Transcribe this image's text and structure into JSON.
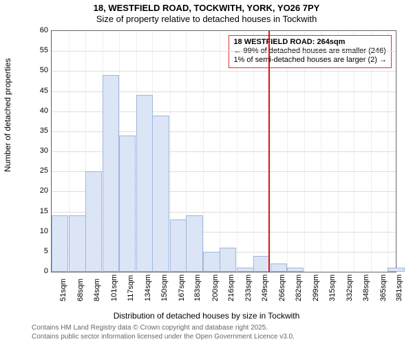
{
  "title": "18, WESTFIELD ROAD, TOCKWITH, YORK, YO26 7PY",
  "subtitle": "Size of property relative to detached houses in Tockwith",
  "yaxis_label": "Number of detached properties",
  "xaxis_label": "Distribution of detached houses by size in Tockwith",
  "credit1": "Contains HM Land Registry data © Crown copyright and database right 2025.",
  "credit2": "Contains public sector information licensed under the Open Government Licence v3.0.",
  "annot": {
    "line1": "18 WESTFIELD ROAD: 264sqm",
    "line2": "← 99% of detached houses are smaller (246)",
    "line3": "1% of semi-detached houses are larger (2) →"
  },
  "chart": {
    "type": "histogram",
    "background_color": "#ffffff",
    "grid_color": "#dddddd",
    "bar_fill": "#dbe5f5",
    "bar_border": "#9fb6dc",
    "marker_color": "#dd1111",
    "annot_border": "#dd3333",
    "ylim": [
      0,
      60
    ],
    "ytick_step": 5,
    "xmin": 51,
    "xmax": 389,
    "xtick_step": 16.5,
    "marker_x": 264,
    "bars": [
      {
        "x": 51,
        "count": 14
      },
      {
        "x": 68,
        "count": 14
      },
      {
        "x": 84,
        "count": 25
      },
      {
        "x": 101,
        "count": 49
      },
      {
        "x": 117,
        "count": 34
      },
      {
        "x": 134,
        "count": 44
      },
      {
        "x": 150,
        "count": 39
      },
      {
        "x": 167,
        "count": 13
      },
      {
        "x": 183,
        "count": 14
      },
      {
        "x": 200,
        "count": 5
      },
      {
        "x": 216,
        "count": 6
      },
      {
        "x": 233,
        "count": 1
      },
      {
        "x": 249,
        "count": 4
      },
      {
        "x": 266,
        "count": 2
      },
      {
        "x": 282,
        "count": 1
      },
      {
        "x": 299,
        "count": 0
      },
      {
        "x": 315,
        "count": 0
      },
      {
        "x": 332,
        "count": 0
      },
      {
        "x": 348,
        "count": 0
      },
      {
        "x": 365,
        "count": 0
      },
      {
        "x": 381,
        "count": 1
      }
    ],
    "xtick_labels": [
      "51sqm",
      "68sqm",
      "84sqm",
      "101sqm",
      "117sqm",
      "134sqm",
      "150sqm",
      "167sqm",
      "183sqm",
      "200sqm",
      "216sqm",
      "233sqm",
      "249sqm",
      "266sqm",
      "282sqm",
      "299sqm",
      "315sqm",
      "332sqm",
      "348sqm",
      "365sqm",
      "381sqm"
    ],
    "title_fontsize": 13,
    "label_fontsize": 12,
    "tick_fontsize": 11
  }
}
